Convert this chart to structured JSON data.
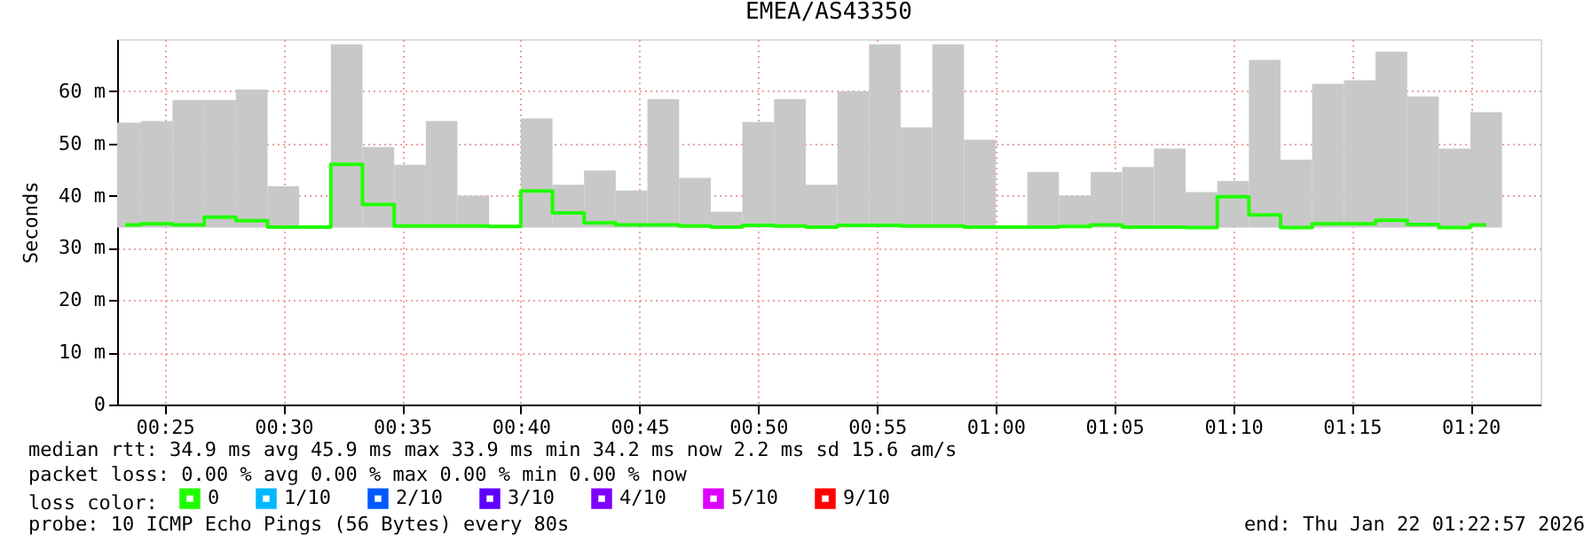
{
  "chart_data": {
    "type": "bar",
    "title": "EMEA/AS43350",
    "ylabel": "Seconds",
    "legend_title": "loss color:",
    "x": [
      0.3889,
      0.4111,
      0.4333,
      0.4556,
      0.4778,
      0.5,
      0.5222,
      0.5444,
      0.5667,
      0.5889,
      0.6111,
      0.6333,
      0.6556,
      0.6778,
      0.7,
      0.7222,
      0.7444,
      0.7667,
      0.7889,
      0.8111,
      0.8333,
      0.8556,
      0.8778,
      0.9,
      0.9222,
      0.9444,
      0.9667,
      0.9889,
      1.0111,
      1.0333,
      1.0556,
      1.0778,
      1.1,
      1.1222,
      1.1444,
      1.1667,
      1.1889,
      1.2111,
      1.2333,
      1.2556,
      1.2778,
      1.3,
      1.3222,
      1.3444
    ],
    "xlim": [
      0.3833,
      1.3825
    ],
    "xticks": [
      {
        "value": 0.4167,
        "label": "00:25"
      },
      {
        "value": 0.5,
        "label": "00:30"
      },
      {
        "value": 0.5833,
        "label": "00:35"
      },
      {
        "value": 0.6667,
        "label": "00:40"
      },
      {
        "value": 0.75,
        "label": "00:45"
      },
      {
        "value": 0.8333,
        "label": "00:50"
      },
      {
        "value": 0.9167,
        "label": "00:55"
      },
      {
        "value": 1.0,
        "label": "01:00"
      },
      {
        "value": 1.0833,
        "label": "01:05"
      },
      {
        "value": 1.1667,
        "label": "01:10"
      },
      {
        "value": 1.25,
        "label": "01:15"
      },
      {
        "value": 1.3333,
        "label": "01:20"
      }
    ],
    "ylim": [
      0,
      70
    ],
    "yticks": [
      0,
      {
        "value": 10,
        "label": "10 m"
      },
      {
        "value": 20,
        "label": "20 m"
      },
      {
        "value": 30,
        "label": "30 m"
      },
      {
        "value": 40,
        "label": "40 m"
      },
      {
        "value": 50,
        "label": "50 m"
      },
      {
        "value": 60,
        "label": "60 m"
      }
    ],
    "grid": true,
    "legend": "bottom left",
    "series": [
      {
        "color": "#c8c8c8",
        "base": [
          33.9,
          33.9,
          33.9,
          33.9,
          33.9,
          33.9,
          null,
          33.9,
          33.9,
          33.9,
          33.9,
          33.9,
          null,
          33.9,
          33.9,
          33.9,
          33.9,
          33.9,
          33.9,
          33.9,
          33.9,
          33.9,
          33.9,
          33.9,
          33.9,
          33.9,
          33.9,
          33.9,
          null,
          33.9,
          33.9,
          33.9,
          33.9,
          33.9,
          33.9,
          33.9,
          33.9,
          33.9,
          33.9,
          33.9,
          33.9,
          33.9,
          33.9,
          33.9
        ],
        "values": [
          20.1,
          20.4,
          24.4,
          24.4,
          26.4,
          7.9,
          null,
          35.1,
          15.4,
          12.0,
          20.4,
          6.1,
          null,
          20.9,
          8.2,
          10.9,
          7.1,
          24.6,
          9.5,
          3.0,
          20.2,
          24.6,
          8.2,
          26.1,
          35.1,
          19.2,
          35.1,
          16.8,
          null,
          10.6,
          6.1,
          10.6,
          11.6,
          15.1,
          6.8,
          8.9,
          32.1,
          13.0,
          27.5,
          28.2,
          33.7,
          25.1,
          15.1,
          22.1
        ]
      },
      {
        "type": "step",
        "name": "0",
        "color": "#20ff00",
        "values": [
          34.4,
          34.6,
          34.4,
          35.9,
          35.2,
          34.0,
          34.0,
          46.0,
          38.3,
          34.2,
          34.2,
          34.2,
          34.1,
          40.9,
          36.7,
          34.8,
          34.4,
          34.4,
          34.2,
          34.0,
          34.3,
          34.2,
          34.0,
          34.3,
          34.3,
          34.2,
          34.2,
          34.0,
          34.0,
          34.0,
          34.1,
          34.4,
          34.0,
          34.0,
          33.9,
          39.8,
          36.3,
          33.9,
          34.6,
          34.6,
          35.3,
          34.5,
          33.9,
          34.4
        ]
      },
      {
        "type": "step",
        "name": "1/10",
        "color": "#00b8ff",
        "values": [
          null,
          null,
          null,
          null,
          null,
          null,
          null,
          null,
          null,
          null,
          null,
          null,
          null,
          null,
          null,
          null,
          null,
          null,
          null,
          null,
          null,
          null,
          null,
          null,
          null,
          null,
          null,
          null,
          null,
          null,
          null,
          null,
          null,
          null,
          null,
          null,
          null,
          null,
          null,
          null,
          null,
          null,
          null,
          null
        ]
      },
      {
        "type": "step",
        "name": "2/10",
        "color": "#0059ff",
        "values": [
          null,
          null,
          null,
          null,
          null,
          null,
          null,
          null,
          null,
          null,
          null,
          null,
          null,
          null,
          null,
          null,
          null,
          null,
          null,
          null,
          null,
          null,
          null,
          null,
          null,
          null,
          null,
          null,
          null,
          null,
          null,
          null,
          null,
          null,
          null,
          null,
          null,
          null,
          null,
          null,
          null,
          null,
          null,
          null
        ]
      },
      {
        "type": "step",
        "name": "3/10",
        "color": "#5e00ff",
        "values": [
          null,
          null,
          null,
          null,
          null,
          null,
          null,
          null,
          null,
          null,
          null,
          null,
          null,
          null,
          null,
          null,
          null,
          null,
          null,
          null,
          null,
          null,
          null,
          null,
          null,
          null,
          null,
          null,
          null,
          null,
          null,
          null,
          null,
          null,
          null,
          null,
          null,
          null,
          null,
          null,
          null,
          null,
          null,
          null
        ]
      },
      {
        "type": "step",
        "name": "4/10",
        "color": "#7e00ff",
        "values": [
          null,
          null,
          null,
          null,
          null,
          null,
          null,
          null,
          null,
          null,
          null,
          null,
          null,
          null,
          null,
          null,
          null,
          null,
          null,
          null,
          null,
          null,
          null,
          null,
          null,
          null,
          null,
          null,
          null,
          null,
          null,
          null,
          null,
          null,
          null,
          null,
          null,
          null,
          null,
          null,
          null,
          null,
          null,
          null
        ]
      },
      {
        "type": "step",
        "name": "5/10",
        "color": "#dd00ff",
        "values": [
          null,
          null,
          null,
          null,
          null,
          null,
          null,
          null,
          null,
          null,
          null,
          null,
          null,
          null,
          null,
          null,
          null,
          null,
          null,
          null,
          null,
          null,
          null,
          null,
          null,
          null,
          null,
          null,
          null,
          null,
          null,
          null,
          null,
          null,
          null,
          null,
          null,
          null,
          null,
          null,
          null,
          null,
          null,
          null
        ]
      },
      {
        "type": "step",
        "name": "9/10",
        "color": "#ff0000",
        "values": [
          null,
          null,
          null,
          null,
          null,
          null,
          null,
          null,
          null,
          null,
          null,
          null,
          null,
          null,
          null,
          null,
          null,
          null,
          null,
          null,
          null,
          null,
          null,
          null,
          null,
          null,
          null,
          null,
          null,
          null,
          null,
          null,
          null,
          null,
          null,
          null,
          null,
          null,
          null,
          null,
          null,
          null,
          null,
          null
        ]
      }
    ],
    "annotations": [
      "median rtt:  34.9 ms avg  45.9 ms max  33.9 ms min  34.2 ms now  2.2 ms sd  15.6   am/s",
      "packet loss: 0.00 % avg  0.00 % max  0.00 % min  0.00 % now",
      "probe:       10 ICMP Echo Pings (56 Bytes) every 80s",
      "end: Thu Jan 22 01:22:57 2026"
    ]
  }
}
